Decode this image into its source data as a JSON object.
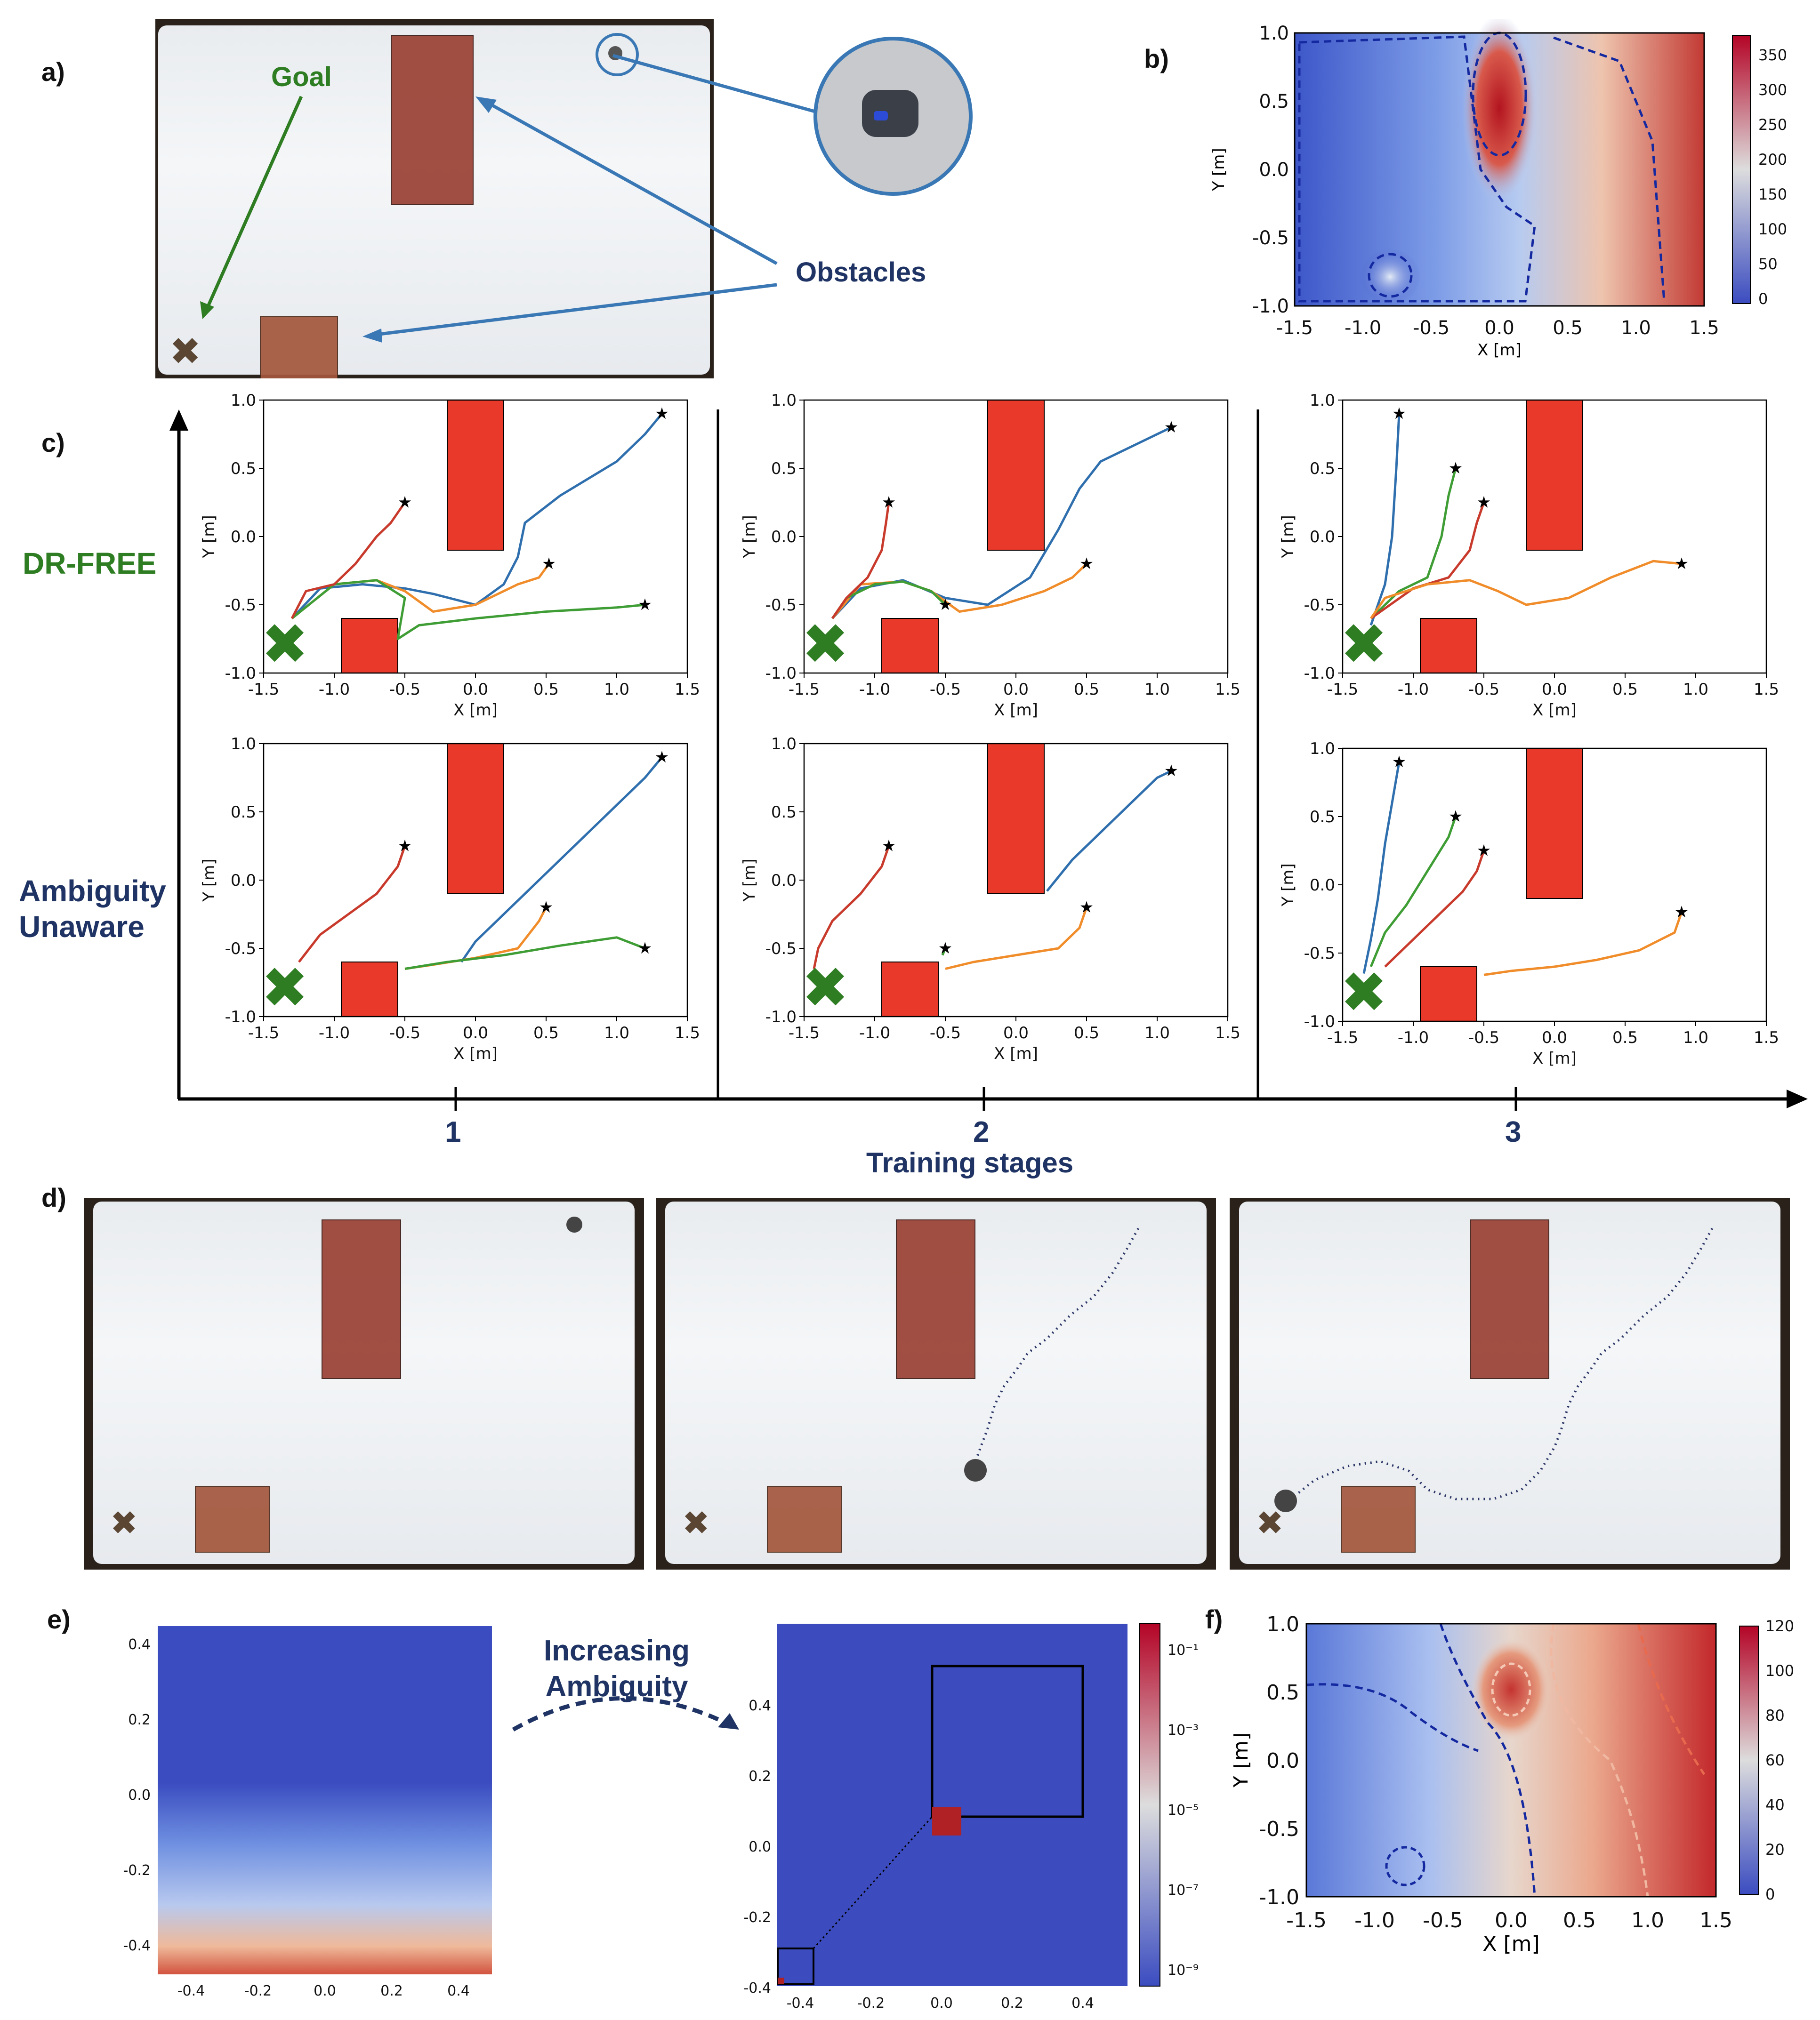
{
  "panel_labels": [
    "a)",
    "b)",
    "c)",
    "d)",
    "e)",
    "f)"
  ],
  "panel_a": {
    "goal_label": "Goal",
    "obstacles_label": "Obstacles"
  },
  "panel_b": {
    "xlabel": "X [m]",
    "ylabel": "Y [m]",
    "xticks": [
      "-1.5",
      "-1.0",
      "-0.5",
      "0.0",
      "0.5",
      "1.0",
      "1.5"
    ],
    "yticks": [
      "1.0",
      "0.5",
      "0.0",
      "-0.5",
      "-1.0"
    ],
    "cbar_ticks": [
      "350",
      "300",
      "250",
      "200",
      "150",
      "100",
      "50",
      "0"
    ]
  },
  "panel_c": {
    "row_labels": {
      "top": "DR-FREE",
      "bottom_line1": "Ambiguity",
      "bottom_line2": "Unaware"
    },
    "stage_labels": [
      "1",
      "2",
      "3"
    ],
    "stage_axis_label": "Training stages",
    "xlabel": "X [m]",
    "ylabel": "Y [m]",
    "xticks": [
      "-1.5",
      "-1.0",
      "-0.5",
      "0.0",
      "0.5",
      "1.0",
      "1.5"
    ],
    "yticks": [
      "1.0",
      "0.5",
      "0.0",
      "-0.5",
      "-1.0"
    ]
  },
  "panel_e": {
    "annotation_line1": "Increasing",
    "annotation_line2": "Ambiguity",
    "left_xticks": [
      "-0.4",
      "-0.2",
      "0.0",
      "0.2",
      "0.4"
    ],
    "left_yticks": [
      "0.4",
      "0.2",
      "0.0",
      "-0.2",
      "-0.4"
    ],
    "right_xticks": [
      "-0.4",
      "-0.2",
      "0.0",
      "0.2",
      "0.4"
    ],
    "right_yticks": [
      "0.4",
      "0.2",
      "0.0",
      "-0.2",
      "-0.4"
    ],
    "cbar_ticks": [
      "10⁻¹",
      "10⁻³",
      "10⁻⁵",
      "10⁻⁷",
      "10⁻⁹"
    ]
  },
  "panel_f": {
    "xlabel": "X [m]",
    "ylabel": "Y [m]",
    "xticks": [
      "-1.5",
      "-1.0",
      "-0.5",
      "0.0",
      "0.5",
      "1.0",
      "1.5"
    ],
    "yticks": [
      "1.0",
      "0.5",
      "0.0",
      "-0.5",
      "-1.0"
    ],
    "cbar_ticks": [
      "120",
      "100",
      "80",
      "60",
      "40",
      "20",
      "0"
    ]
  },
  "colors": {
    "goal_green": "#2e7d22",
    "navy": "#1f3464",
    "arrow_blue": "#3a78b5",
    "obstacle_red": "#e8392a",
    "traj_blue": "#2f6fae",
    "traj_orange": "#f08c2a",
    "traj_green": "#3f9d35",
    "traj_red": "#c83a2c"
  },
  "chart_data": [
    {
      "type": "line",
      "id": "c-dr-free-stage1",
      "xlabel": "X [m]",
      "ylabel": "Y [m]",
      "xlim": [
        -1.5,
        1.5
      ],
      "ylim": [
        -1.0,
        1.0
      ],
      "obstacles": [
        {
          "x": [
            -0.2,
            0.2
          ],
          "y": [
            -0.1,
            1.0
          ]
        },
        {
          "x": [
            -0.95,
            -0.55
          ],
          "y": [
            -1.0,
            -0.6
          ]
        }
      ],
      "goal": [
        -1.35,
        -0.8
      ],
      "series": [
        {
          "color": "blue",
          "x": [
            1.32,
            1.2,
            1.0,
            0.6,
            0.35,
            0.3,
            0.2,
            0.0,
            -0.3,
            -0.5,
            -0.8,
            -1.1,
            -1.3
          ],
          "y": [
            0.9,
            0.75,
            0.55,
            0.3,
            0.1,
            -0.15,
            -0.35,
            -0.5,
            -0.42,
            -0.38,
            -0.35,
            -0.38,
            -0.6
          ]
        },
        {
          "color": "orange",
          "x": [
            0.52,
            0.45,
            0.3,
            0.0,
            -0.3,
            -0.5,
            -0.7,
            -1.0,
            -1.3
          ],
          "y": [
            -0.2,
            -0.3,
            -0.35,
            -0.5,
            -0.55,
            -0.4,
            -0.32,
            -0.35,
            -0.6
          ]
        },
        {
          "color": "green",
          "x": [
            1.2,
            1.0,
            0.5,
            0.0,
            -0.4,
            -0.55,
            -0.5,
            -0.7,
            -1.0,
            -1.3
          ],
          "y": [
            -0.5,
            -0.52,
            -0.55,
            -0.6,
            -0.65,
            -0.75,
            -0.45,
            -0.32,
            -0.35,
            -0.6
          ]
        },
        {
          "color": "red",
          "x": [
            -0.5,
            -0.6,
            -0.7,
            -0.85,
            -1.0,
            -1.2,
            -1.3
          ],
          "y": [
            0.25,
            0.1,
            0.0,
            -0.2,
            -0.35,
            -0.4,
            -0.6
          ]
        }
      ]
    },
    {
      "type": "line",
      "id": "c-dr-free-stage2",
      "xlabel": "X [m]",
      "ylabel": "Y [m]",
      "xlim": [
        -1.5,
        1.5
      ],
      "ylim": [
        -1.0,
        1.0
      ],
      "obstacles": [
        {
          "x": [
            -0.2,
            0.2
          ],
          "y": [
            -0.1,
            1.0
          ]
        },
        {
          "x": [
            -0.95,
            -0.55
          ],
          "y": [
            -1.0,
            -0.6
          ]
        }
      ],
      "goal": [
        -1.35,
        -0.8
      ],
      "series": [
        {
          "color": "blue",
          "x": [
            1.1,
            0.9,
            0.6,
            0.45,
            0.3,
            0.1,
            -0.2,
            -0.5,
            -0.8,
            -1.1,
            -1.3
          ],
          "y": [
            0.8,
            0.7,
            0.55,
            0.35,
            0.05,
            -0.3,
            -0.5,
            -0.45,
            -0.32,
            -0.38,
            -0.6
          ]
        },
        {
          "color": "orange",
          "x": [
            0.5,
            0.4,
            0.2,
            -0.1,
            -0.4,
            -0.6,
            -0.8,
            -1.1,
            -1.3
          ],
          "y": [
            -0.2,
            -0.3,
            -0.4,
            -0.5,
            -0.55,
            -0.4,
            -0.33,
            -0.35,
            -0.6
          ]
        },
        {
          "color": "green",
          "x": [
            -0.5,
            -0.6,
            -0.8,
            -1.0,
            -1.2,
            -1.3
          ],
          "y": [
            -0.5,
            -0.4,
            -0.33,
            -0.35,
            -0.45,
            -0.6
          ]
        },
        {
          "color": "red",
          "x": [
            -0.9,
            -0.92,
            -0.95,
            -1.05,
            -1.2,
            -1.3
          ],
          "y": [
            0.25,
            0.1,
            -0.1,
            -0.3,
            -0.45,
            -0.6
          ]
        }
      ]
    },
    {
      "type": "line",
      "id": "c-dr-free-stage3",
      "xlabel": "X [m]",
      "ylabel": "Y [m]",
      "xlim": [
        -1.5,
        1.5
      ],
      "ylim": [
        -1.0,
        1.0
      ],
      "obstacles": [
        {
          "x": [
            -0.2,
            0.2
          ],
          "y": [
            -0.1,
            1.0
          ]
        },
        {
          "x": [
            -0.95,
            -0.55
          ],
          "y": [
            -1.0,
            -0.6
          ]
        }
      ],
      "goal": [
        -1.35,
        -0.8
      ],
      "series": [
        {
          "color": "blue",
          "x": [
            -1.1,
            -1.12,
            -1.15,
            -1.2,
            -1.25,
            -1.3
          ],
          "y": [
            0.9,
            0.5,
            0.0,
            -0.35,
            -0.5,
            -0.65
          ]
        },
        {
          "color": "green",
          "x": [
            -0.7,
            -0.75,
            -0.8,
            -0.9,
            -1.1,
            -1.3
          ],
          "y": [
            0.5,
            0.3,
            0.0,
            -0.3,
            -0.4,
            -0.6
          ]
        },
        {
          "color": "red",
          "x": [
            -0.5,
            -0.55,
            -0.6,
            -0.75,
            -1.0,
            -1.3
          ],
          "y": [
            0.25,
            0.1,
            -0.1,
            -0.3,
            -0.38,
            -0.6
          ]
        },
        {
          "color": "orange",
          "x": [
            0.9,
            0.7,
            0.4,
            0.1,
            -0.2,
            -0.4,
            -0.6,
            -0.9,
            -1.2,
            -1.3
          ],
          "y": [
            -0.2,
            -0.18,
            -0.3,
            -0.45,
            -0.5,
            -0.4,
            -0.32,
            -0.35,
            -0.45,
            -0.6
          ]
        }
      ]
    },
    {
      "type": "line",
      "id": "c-unaware-stage1",
      "xlabel": "X [m]",
      "ylabel": "Y [m]",
      "xlim": [
        -1.5,
        1.5
      ],
      "ylim": [
        -1.0,
        1.0
      ],
      "obstacles": [
        {
          "x": [
            -0.2,
            0.2
          ],
          "y": [
            -0.1,
            1.0
          ]
        },
        {
          "x": [
            -0.95,
            -0.55
          ],
          "y": [
            -1.0,
            -0.6
          ]
        }
      ],
      "goal": [
        -1.35,
        -0.8
      ],
      "series": [
        {
          "color": "blue",
          "x": [
            1.32,
            1.2,
            0.8,
            0.4,
            0.0,
            -0.1
          ],
          "y": [
            0.9,
            0.75,
            0.35,
            -0.05,
            -0.45,
            -0.6
          ]
        },
        {
          "color": "orange",
          "x": [
            0.5,
            0.45,
            0.3,
            0.0,
            -0.3,
            -0.5
          ],
          "y": [
            -0.2,
            -0.3,
            -0.5,
            -0.57,
            -0.62,
            -0.65
          ]
        },
        {
          "color": "green",
          "x": [
            1.2,
            1.0,
            0.6,
            0.2,
            -0.2,
            -0.5
          ],
          "y": [
            -0.5,
            -0.42,
            -0.48,
            -0.55,
            -0.6,
            -0.65
          ]
        },
        {
          "color": "red",
          "x": [
            -0.5,
            -0.55,
            -0.7,
            -0.9,
            -1.1,
            -1.25
          ],
          "y": [
            0.25,
            0.1,
            -0.1,
            -0.25,
            -0.4,
            -0.6
          ]
        }
      ]
    },
    {
      "type": "line",
      "id": "c-unaware-stage2",
      "xlabel": "X [m]",
      "ylabel": "Y [m]",
      "xlim": [
        -1.5,
        1.5
      ],
      "ylim": [
        -1.0,
        1.0
      ],
      "obstacles": [
        {
          "x": [
            -0.2,
            0.2
          ],
          "y": [
            -0.1,
            1.0
          ]
        },
        {
          "x": [
            -0.95,
            -0.55
          ],
          "y": [
            -1.0,
            -0.6
          ]
        }
      ],
      "goal": [
        -1.35,
        -0.8
      ],
      "series": [
        {
          "color": "blue",
          "x": [
            1.1,
            1.0,
            0.7,
            0.4,
            0.22
          ],
          "y": [
            0.8,
            0.75,
            0.45,
            0.15,
            -0.08
          ]
        },
        {
          "color": "orange",
          "x": [
            0.5,
            0.45,
            0.3,
            0.0,
            -0.3,
            -0.5
          ],
          "y": [
            -0.2,
            -0.35,
            -0.5,
            -0.55,
            -0.6,
            -0.65
          ]
        },
        {
          "color": "green",
          "x": [
            -0.5,
            -0.52
          ],
          "y": [
            -0.5,
            -0.55
          ]
        },
        {
          "color": "red",
          "x": [
            -0.9,
            -0.95,
            -1.1,
            -1.3,
            -1.4,
            -1.43
          ],
          "y": [
            0.25,
            0.1,
            -0.1,
            -0.3,
            -0.5,
            -0.65
          ]
        }
      ]
    },
    {
      "type": "line",
      "id": "c-unaware-stage3",
      "xlabel": "X [m]",
      "ylabel": "Y [m]",
      "xlim": [
        -1.5,
        1.5
      ],
      "ylim": [
        -1.0,
        1.0
      ],
      "obstacles": [
        {
          "x": [
            -0.2,
            0.2
          ],
          "y": [
            -0.1,
            1.0
          ]
        },
        {
          "x": [
            -0.95,
            -0.55
          ],
          "y": [
            -1.0,
            -0.6
          ]
        }
      ],
      "goal": [
        -1.35,
        -0.8
      ],
      "series": [
        {
          "color": "blue",
          "x": [
            -1.1,
            -1.15,
            -1.2,
            -1.25,
            -1.3,
            -1.35
          ],
          "y": [
            0.9,
            0.6,
            0.3,
            -0.1,
            -0.4,
            -0.65
          ]
        },
        {
          "color": "green",
          "x": [
            -0.7,
            -0.75,
            -0.9,
            -1.05,
            -1.2,
            -1.3
          ],
          "y": [
            0.5,
            0.35,
            0.1,
            -0.15,
            -0.35,
            -0.6
          ]
        },
        {
          "color": "red",
          "x": [
            -0.5,
            -0.55,
            -0.65,
            -0.8,
            -1.0,
            -1.2
          ],
          "y": [
            0.25,
            0.1,
            -0.05,
            -0.2,
            -0.4,
            -0.6
          ]
        },
        {
          "color": "orange",
          "x": [
            0.9,
            0.85,
            0.6,
            0.3,
            0.0,
            -0.3,
            -0.5
          ],
          "y": [
            -0.2,
            -0.35,
            -0.48,
            -0.55,
            -0.6,
            -0.63,
            -0.66
          ]
        }
      ]
    }
  ]
}
